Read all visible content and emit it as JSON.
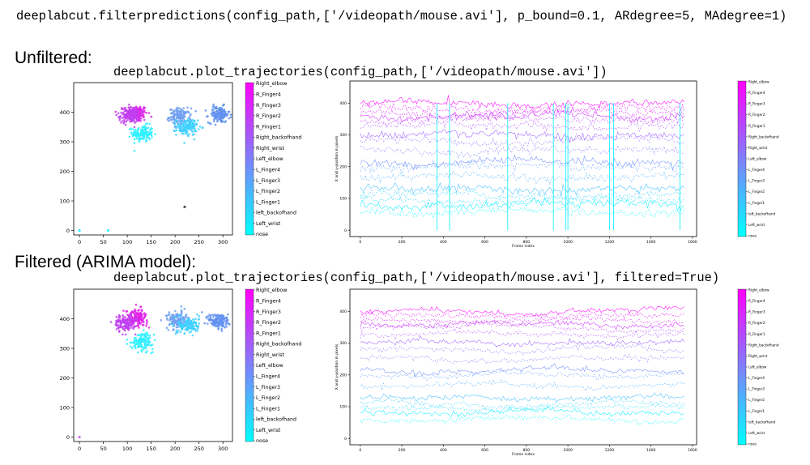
{
  "header": {
    "filter_command": "deeplabcut.filterpredictions(config_path,['/videopath/mouse.avi'], p_bound=0.1, ARdegree=5, MAdegree=1)"
  },
  "sections": [
    {
      "heading": "Unfiltered:",
      "command": "deeplabcut.plot_trajectories(config_path,['/videopath/mouse.avi'])"
    },
    {
      "heading": "Filtered (ARIMA model):",
      "command": "deeplabcut.plot_trajectories(config_path,['/videopath/mouse.avi'], filtered=True)"
    }
  ],
  "colors": {
    "colormap_top": "#ff00ff",
    "colormap_bottom": "#00ffff"
  },
  "chart_data": [
    {
      "type": "scatter",
      "panel": "unfiltered-xy",
      "x_ticks": [
        "0",
        "50",
        "100",
        "150",
        "200",
        "250",
        "300"
      ],
      "y_ticks": [
        "0",
        "100",
        "200",
        "300",
        "400"
      ],
      "xlim": [
        -12,
        320
      ],
      "ylim": [
        500,
        -15
      ],
      "clusters": [
        {
          "x": 120,
          "y": 395,
          "color": "#e020e8"
        },
        {
          "x": 132,
          "y": 328,
          "color": "#30f0ff"
        },
        {
          "x": 105,
          "y": 390,
          "color": "#c040f0"
        },
        {
          "x": 210,
          "y": 385,
          "color": "#70a0f0"
        },
        {
          "x": 225,
          "y": 350,
          "color": "#40d0ff"
        },
        {
          "x": 292,
          "y": 392,
          "color": "#6090f0"
        }
      ],
      "outliers": [
        {
          "x": 0,
          "y": 0,
          "color": "#30f0ff"
        },
        {
          "x": 60,
          "y": 0,
          "color": "#30f0ff"
        },
        {
          "x": 220,
          "y": 80,
          "color": "#505050"
        }
      ]
    },
    {
      "type": "line",
      "panel": "unfiltered-time",
      "xlabel": "Frame index",
      "ylabel": "X and y-position in pixels",
      "x_ticks": [
        "0",
        "200",
        "400",
        "600",
        "800",
        "1000",
        "1200",
        "1400",
        "1600"
      ],
      "y_ticks": [
        "0",
        "100",
        "200",
        "300",
        "400"
      ],
      "xlim": [
        -50,
        1620
      ],
      "ylim": [
        -20,
        470
      ],
      "series_levels": [
        400,
        385,
        370,
        360,
        350,
        330,
        300,
        280,
        250,
        215,
        200,
        170,
        130,
        110,
        95,
        80,
        60
      ],
      "spike_frames": [
        370,
        430,
        710,
        930,
        990,
        1000,
        1200,
        1220,
        1540
      ]
    },
    {
      "type": "scatter",
      "panel": "filtered-xy",
      "x_ticks": [
        "0",
        "50",
        "100",
        "150",
        "200",
        "250",
        "300"
      ],
      "y_ticks": [
        "0",
        "100",
        "200",
        "300",
        "400"
      ],
      "xlim": [
        -12,
        320
      ],
      "ylim": [
        500,
        -15
      ],
      "clusters": [
        {
          "x": 120,
          "y": 405,
          "color": "#e020e8"
        },
        {
          "x": 132,
          "y": 325,
          "color": "#30f0ff"
        },
        {
          "x": 95,
          "y": 385,
          "color": "#c040f0"
        },
        {
          "x": 205,
          "y": 395,
          "color": "#70a0f0"
        },
        {
          "x": 228,
          "y": 378,
          "color": "#40d0ff"
        },
        {
          "x": 292,
          "y": 392,
          "color": "#6090f0"
        }
      ],
      "outliers": [
        {
          "x": 0,
          "y": 0,
          "color": "#d070f0"
        }
      ]
    },
    {
      "type": "line",
      "panel": "filtered-time",
      "xlabel": "Frame index",
      "ylabel": "X and y-position in pixels",
      "x_ticks": [
        "0",
        "200",
        "400",
        "600",
        "800",
        "1000",
        "1200",
        "1400",
        "1600"
      ],
      "y_ticks": [
        "0",
        "100",
        "200",
        "300",
        "400"
      ],
      "xlim": [
        -50,
        1620
      ],
      "ylim": [
        -20,
        470
      ],
      "series_levels": [
        400,
        385,
        370,
        360,
        350,
        330,
        300,
        280,
        250,
        215,
        200,
        170,
        130,
        110,
        95,
        80,
        60
      ],
      "spike_frames": []
    }
  ],
  "legend": {
    "scatter_labels": [
      "Right_elbow",
      "R_Finger4",
      "R_Finger3",
      "R_Finger2",
      "R_Finger1",
      "Right_backofhand",
      "Right_wrist",
      "Left_elbow",
      "L_Finger4",
      "L_Finger3",
      "L_Finger2",
      "L_Finger1",
      "left_backofhand",
      "Left_wrist",
      "nose"
    ],
    "time_labels": [
      "Right_elbow",
      "R_Finger4",
      "R_Finger3",
      "R_Finger2",
      "R_Finger1",
      "Right_backofhand",
      "Right_wrist",
      "Left_elbow",
      "L_Finger4",
      "L_Finger3",
      "L_Finger2",
      "L_Finger1",
      "left_backofhand",
      "Left_wrist",
      "nose"
    ]
  }
}
